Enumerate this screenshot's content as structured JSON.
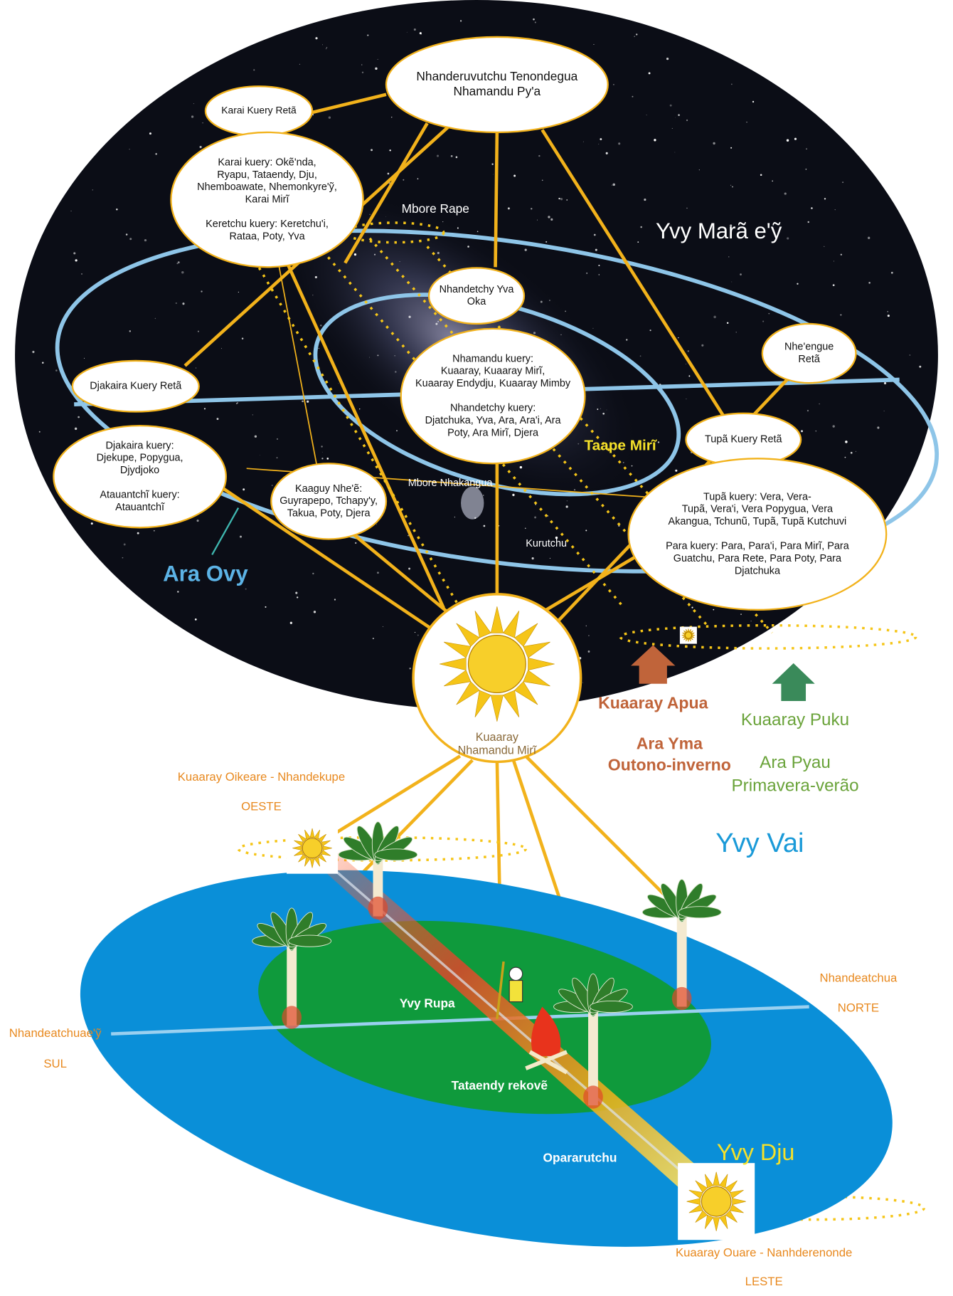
{
  "nodes": [
    {
      "paragraphs": [
        [
          "Nhanderuvutchu Tenondegua",
          "Nhamandu Py'a"
        ]
      ]
    },
    {
      "paragraphs": [
        [
          "Karai Kuery Retã"
        ]
      ]
    },
    {
      "paragraphs": [
        [
          "Karai kuery: Okẽ'nda,",
          "Ryapu, Tataendy, Dju,",
          "Nhemboawate, Nhemonkyre'ỹ,",
          "Karai Mirĩ"
        ],
        [
          "Keretchu kuery: Keretchu'i,",
          "Rataa, Poty, Yva"
        ]
      ]
    },
    {
      "paragraphs": [
        [
          "Nhandetchy Yva",
          "Oka"
        ]
      ]
    },
    {
      "paragraphs": [
        [
          "Nhamandu kuery:",
          "Kuaaray, Kuaaray Mirĩ,",
          "Kuaaray Endydju, Kuaaray Mimby"
        ],
        [
          "Nhandetchy kuery:",
          "Djatchuka, Yva, Ara, Ara'i, Ara",
          "Poty, Ara Mirĩ, Djera"
        ]
      ]
    },
    {
      "paragraphs": [
        [
          "Nhe'engue",
          "Retã"
        ]
      ]
    },
    {
      "paragraphs": [
        [
          "Djakaira Kuery Retã"
        ]
      ]
    },
    {
      "paragraphs": [
        [
          "Djakaira kuery:",
          "Djekupe, Popygua,",
          "Djydjoko"
        ],
        [
          "Atauantchĩ kuery:",
          "Atauantchĩ"
        ]
      ]
    },
    {
      "paragraphs": [
        [
          "Kaaguy Nhe'ẽ:",
          "Guyrapepo, Tchapy'y,",
          "Takua, Poty, Djera"
        ]
      ]
    },
    {
      "paragraphs": [
        [
          "Tupã Kuery Retã"
        ]
      ]
    },
    {
      "paragraphs": [
        [
          "Tupã kuery: Vera, Vera-",
          "Tupã, Vera'i, Vera Popygua, Vera",
          "Akangua, Tchunũ, Tupã, Tupã Kutchuvi"
        ],
        [
          "Para kuery: Para, Para'i, Para Mirĩ, Para",
          "Guatchu, Para Rete, Para Poty, Para",
          "Djatchuka"
        ]
      ]
    }
  ],
  "labels": [
    {
      "text": "Mbore Rape"
    },
    {
      "text": "Yvy Marã e'ỹ"
    },
    {
      "text": "Taape Mirĩ"
    },
    {
      "text": "Mbore Nhakangua"
    },
    {
      "text": "Kurutchu"
    },
    {
      "text": "Ara Ovy"
    },
    {
      "text": "Kuaaray"
    },
    {
      "text": "Nhamandu Mirĩ"
    },
    {
      "text": "Kuaaray Apua"
    },
    {
      "text": "Ara Yma"
    },
    {
      "text": "Outono-inverno"
    },
    {
      "text": "Kuaaray Puku"
    },
    {
      "text": "Ara Pyau"
    },
    {
      "text": "Primavera-verão"
    },
    {
      "text": "Kuaaray Oikeare - Nhandekupe"
    },
    {
      "text": "OESTE"
    },
    {
      "text": "Yvy Vai"
    },
    {
      "text": "Nhandeatchua"
    },
    {
      "text": "NORTE"
    },
    {
      "text": "Nhandeatchuae'ỹ"
    },
    {
      "text": "SUL"
    },
    {
      "text": "Yvy Rupa"
    },
    {
      "text": "Tataendy rekovẽ"
    },
    {
      "text": "Opararutchu"
    },
    {
      "text": "Yvy Dju"
    },
    {
      "text": "Kuaaray Ouare -  Nanhderenonde"
    },
    {
      "text": "LESTE"
    }
  ]
}
